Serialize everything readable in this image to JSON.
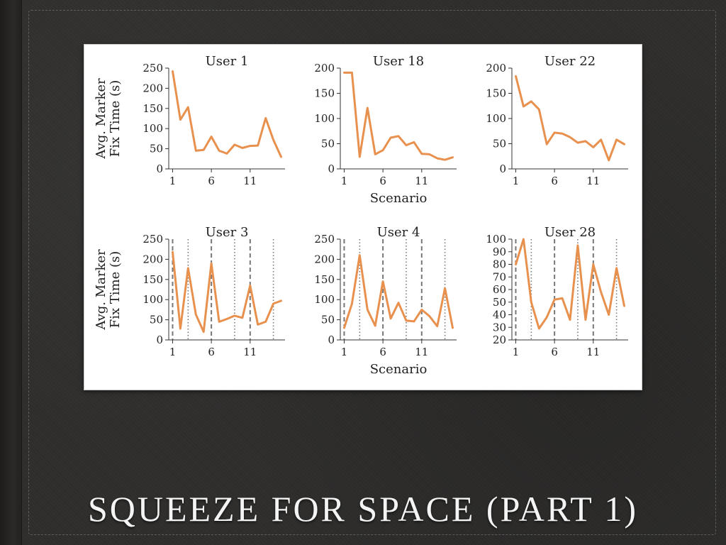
{
  "slide": {
    "title": "SQUEEZE FOR SPACE (PART 1)"
  },
  "colors": {
    "line": "#e8914f",
    "marker_lines": "#777777"
  },
  "chart_data": [
    {
      "type": "line",
      "title": "User 1",
      "ylabel_lines": [
        "Avg. Marker",
        "Fix Time (s)"
      ],
      "xlabel": "",
      "xticks": [
        1,
        6,
        11
      ],
      "yticks": [
        0,
        50,
        100,
        150,
        200,
        250
      ],
      "xlim": [
        0.5,
        15.5
      ],
      "ylim": [
        0,
        250
      ],
      "x": [
        1,
        2,
        3,
        4,
        5,
        6,
        7,
        8,
        9,
        10,
        11,
        12,
        13,
        14,
        15
      ],
      "values": [
        242,
        122,
        153,
        45,
        47,
        80,
        45,
        38,
        60,
        52,
        57,
        58,
        126,
        72,
        30
      ],
      "dashed_lines": [],
      "dotted_lines": []
    },
    {
      "type": "line",
      "title": "User 18",
      "ylabel_lines": [],
      "xlabel": "Scenario",
      "xticks": [
        1,
        6,
        11
      ],
      "yticks": [
        0,
        50,
        100,
        150,
        200
      ],
      "xlim": [
        0.5,
        15.5
      ],
      "ylim": [
        0,
        200
      ],
      "x": [
        1,
        2,
        3,
        4,
        5,
        6,
        7,
        8,
        9,
        10,
        11,
        12,
        13,
        14,
        15
      ],
      "values": [
        191,
        191,
        24,
        121,
        29,
        37,
        62,
        65,
        47,
        53,
        30,
        29,
        21,
        18,
        23
      ],
      "dashed_lines": [],
      "dotted_lines": []
    },
    {
      "type": "line",
      "title": "User 22",
      "ylabel_lines": [],
      "xlabel": "",
      "xticks": [
        1,
        6,
        11
      ],
      "yticks": [
        0,
        50,
        100,
        150,
        200
      ],
      "xlim": [
        0.5,
        15.5
      ],
      "ylim": [
        0,
        200
      ],
      "x": [
        1,
        2,
        3,
        4,
        5,
        6,
        7,
        8,
        9,
        10,
        11,
        12,
        13,
        14,
        15
      ],
      "values": [
        184,
        124,
        134,
        118,
        49,
        72,
        70,
        63,
        52,
        55,
        43,
        58,
        17,
        58,
        49
      ],
      "dashed_lines": [],
      "dotted_lines": []
    },
    {
      "type": "line",
      "title": "User 3",
      "ylabel_lines": [
        "Avg. Marker",
        "Fix Time (s)"
      ],
      "xlabel": "",
      "xticks": [
        1,
        6,
        11
      ],
      "yticks": [
        0,
        50,
        100,
        150,
        200,
        250
      ],
      "xlim": [
        0.5,
        15.5
      ],
      "ylim": [
        0,
        250
      ],
      "x": [
        1,
        2,
        3,
        4,
        5,
        6,
        7,
        8,
        9,
        10,
        11,
        12,
        13,
        14,
        15
      ],
      "values": [
        218,
        28,
        178,
        63,
        20,
        190,
        45,
        52,
        60,
        55,
        135,
        38,
        45,
        90,
        97
      ],
      "dashed_lines": [
        1,
        6,
        11
      ],
      "dotted_lines": [
        3,
        9,
        14
      ]
    },
    {
      "type": "line",
      "title": "User 4",
      "ylabel_lines": [],
      "xlabel": "Scenario",
      "xticks": [
        1,
        6,
        11
      ],
      "yticks": [
        0,
        50,
        100,
        150,
        200,
        250
      ],
      "xlim": [
        0.5,
        15.5
      ],
      "ylim": [
        0,
        250
      ],
      "x": [
        1,
        2,
        3,
        4,
        5,
        6,
        7,
        8,
        9,
        10,
        11,
        12,
        13,
        14,
        15
      ],
      "values": [
        30,
        90,
        210,
        75,
        35,
        145,
        53,
        92,
        48,
        46,
        75,
        59,
        34,
        128,
        30
      ],
      "dashed_lines": [
        1,
        6,
        11
      ],
      "dotted_lines": [
        3,
        9,
        14
      ]
    },
    {
      "type": "line",
      "title": "User 28",
      "ylabel_lines": [],
      "xlabel": "",
      "xticks": [
        1,
        6,
        11
      ],
      "yticks": [
        20,
        30,
        40,
        50,
        60,
        70,
        80,
        90,
        100
      ],
      "xlim": [
        0.5,
        15.5
      ],
      "ylim": [
        20,
        100
      ],
      "x": [
        1,
        2,
        3,
        4,
        5,
        6,
        7,
        8,
        9,
        10,
        11,
        12,
        13,
        14,
        15
      ],
      "values": [
        80,
        100,
        50,
        29,
        38,
        52,
        53,
        36,
        95,
        36,
        80,
        58,
        40,
        77,
        47
      ],
      "dashed_lines": [
        1,
        6,
        11
      ],
      "dotted_lines": [
        3,
        9,
        14
      ]
    }
  ]
}
